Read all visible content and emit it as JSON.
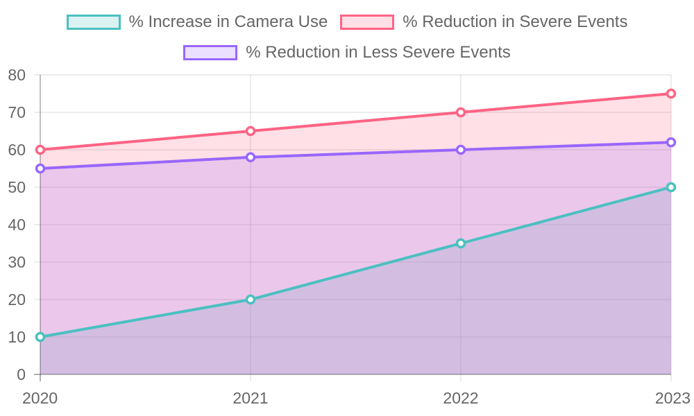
{
  "chart_data": {
    "type": "line",
    "area_fill": true,
    "categories": [
      "2020",
      "2021",
      "2022",
      "2023"
    ],
    "series": [
      {
        "name": "% Increase in Camera Use",
        "values": [
          10,
          20,
          35,
          50
        ],
        "color": "#4bc0c0",
        "fill": "rgba(75,192,192,0.2)"
      },
      {
        "name": "% Reduction in Severe Events",
        "values": [
          60,
          65,
          70,
          75
        ],
        "color": "#ff6384",
        "fill": "rgba(255,99,132,0.2)"
      },
      {
        "name": "% Reduction in Less Severe Events",
        "values": [
          55,
          58,
          60,
          62
        ],
        "color": "#9966ff",
        "fill": "rgba(153,102,255,0.2)"
      }
    ],
    "ylim": [
      0,
      80
    ],
    "yticks": [
      "0",
      "10",
      "20",
      "30",
      "40",
      "50",
      "60",
      "70",
      "80"
    ],
    "grid": true,
    "legend_position": "top",
    "title": "",
    "xlabel": "",
    "ylabel": ""
  }
}
